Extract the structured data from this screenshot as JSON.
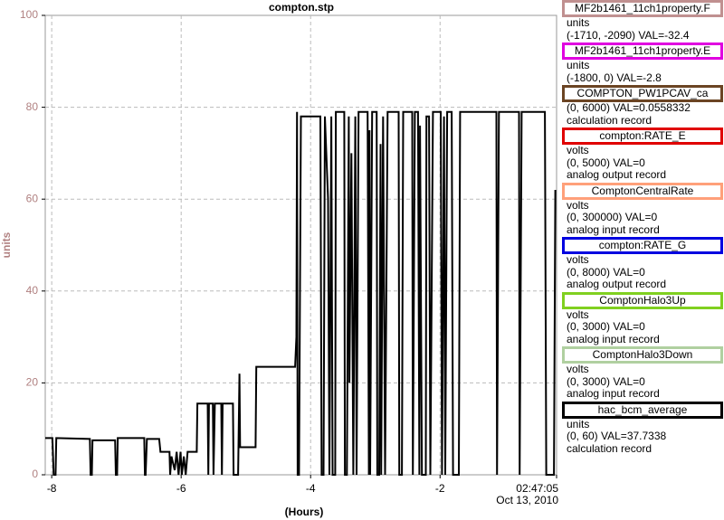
{
  "chart_data": {
    "type": "line",
    "title": "compton.stp",
    "ylabel": "units",
    "xlabel": "(Hours)",
    "x_end_date": "Oct 13, 2010",
    "xlim": [
      -8.1,
      -0.2
    ],
    "xticks": [
      -8,
      -6,
      -4,
      -2,
      {
        "value": -0.2,
        "label": "02:47:05"
      }
    ],
    "ylim": [
      0,
      100
    ],
    "yticks": [
      0,
      20,
      40,
      60,
      80,
      100
    ],
    "grid": true,
    "axis_label_color": "#b08080",
    "series": [
      {
        "name": "MF2b1461_11ch1property.F",
        "color": "#c09090",
        "info": [
          "units",
          "(-1710, -2090) VAL=-32.4"
        ]
      },
      {
        "name": "MF2b1461_11ch1property.E",
        "color": "#e000e0",
        "info": [
          "units",
          "(-1800, 0) VAL=-2.8"
        ]
      },
      {
        "name": "COMPTON_PW1PCAV_ca",
        "color": "#6b4423",
        "info": [
          "(0, 6000) VAL=0.0558332",
          "calculation record"
        ]
      },
      {
        "name": "compton:RATE_E",
        "color": "#e00000",
        "info": [
          "volts",
          "(0, 5000) VAL=0",
          "analog output record"
        ]
      },
      {
        "name": "ComptonCentralRate",
        "color": "#ffa07a",
        "info": [
          "volts",
          "(0, 300000) VAL=0",
          "analog input record"
        ]
      },
      {
        "name": "compton:RATE_G",
        "color": "#0000e0",
        "info": [
          "volts",
          "(0, 8000) VAL=0",
          "analog output record"
        ]
      },
      {
        "name": "ComptonHalo3Up",
        "color": "#80d020",
        "info": [
          "volts",
          "(0, 3000) VAL=0",
          "analog input record"
        ]
      },
      {
        "name": "ComptonHalo3Down",
        "color": "#b0d0a0",
        "info": [
          "volts",
          "(0, 3000) VAL=0",
          "analog input record"
        ]
      },
      {
        "name": "hac_bcm_average",
        "color": "#000000",
        "info": [
          "units",
          "(0, 60) VAL=37.7338",
          "calculation record"
        ],
        "x": [
          -8.1,
          -7.99,
          -7.97,
          -7.94,
          -7.93,
          -7.41,
          -7.4,
          -7.38,
          -7.37,
          -7.02,
          -7.01,
          -6.99,
          -6.98,
          -6.57,
          -6.56,
          -6.55,
          -6.53,
          -6.34,
          -6.32,
          -6.18,
          -6.17,
          -6.15,
          -6.1,
          -6.07,
          -6.04,
          -6.01,
          -5.99,
          -5.96,
          -5.93,
          -5.9,
          -5.76,
          -5.75,
          -5.59,
          -5.58,
          -5.57,
          -5.51,
          -5.5,
          -5.48,
          -5.38,
          -5.37,
          -5.36,
          -5.2,
          -5.19,
          -5.12,
          -5.1,
          -5.09,
          -4.85,
          -4.84,
          -4.24,
          -4.22,
          -4.21,
          -4.2,
          -4.18,
          -4.15,
          -3.85,
          -3.83,
          -3.8,
          -3.78,
          -3.73,
          -3.71,
          -3.68,
          -3.66,
          -3.62,
          -3.61,
          -3.48,
          -3.47,
          -3.44,
          -3.41,
          -3.4,
          -3.37,
          -3.34,
          -3.31,
          -3.29,
          -3.26,
          -3.12,
          -3.1,
          -3.09,
          -3.08,
          -3.05,
          -2.98,
          -2.97,
          -2.94,
          -2.92,
          -2.91,
          -2.88,
          -2.85,
          -2.81,
          -2.64,
          -2.63,
          -2.59,
          -2.57,
          -2.43,
          -2.42,
          -2.39,
          -2.34,
          -2.32,
          -2.31,
          -2.28,
          -2.22,
          -2.21,
          -2.17,
          -2.15,
          -2.11,
          -1.99,
          -1.97,
          -1.94,
          -1.92,
          -1.89,
          -1.82,
          -1.8,
          -1.71,
          -1.69,
          -1.13,
          -1.12,
          -1.09,
          -0.78,
          -0.77,
          -0.74,
          -0.38,
          -0.36,
          -0.24,
          -0.22
        ],
        "values": [
          8,
          8,
          0,
          0,
          8,
          7.8,
          0,
          0,
          7.5,
          7.5,
          0,
          0,
          8,
          8,
          0,
          0,
          7.8,
          7.8,
          5,
          5,
          0,
          4,
          1,
          5,
          0,
          5,
          0,
          4,
          0,
          5,
          5,
          15.5,
          15.5,
          0,
          15.5,
          15.5,
          0,
          15.5,
          15.5,
          0,
          15.5,
          15.5,
          0,
          0,
          22,
          6,
          6,
          23.5,
          23.5,
          30,
          79,
          0,
          0,
          78,
          78,
          0,
          0,
          78,
          60,
          0,
          78,
          0,
          0,
          79,
          79,
          0,
          0,
          78,
          20,
          70,
          0,
          78,
          0,
          79,
          79,
          0,
          75,
          0,
          79,
          79,
          0,
          0,
          72,
          0,
          78,
          0,
          79,
          79,
          0,
          0,
          79,
          79,
          0,
          79,
          79,
          0,
          76,
          0,
          0,
          78,
          78,
          0,
          79,
          79,
          0,
          78,
          0,
          79,
          79,
          0,
          0,
          79,
          79,
          0,
          79,
          79,
          0,
          79,
          79,
          0,
          0,
          62
        ]
      }
    ]
  }
}
